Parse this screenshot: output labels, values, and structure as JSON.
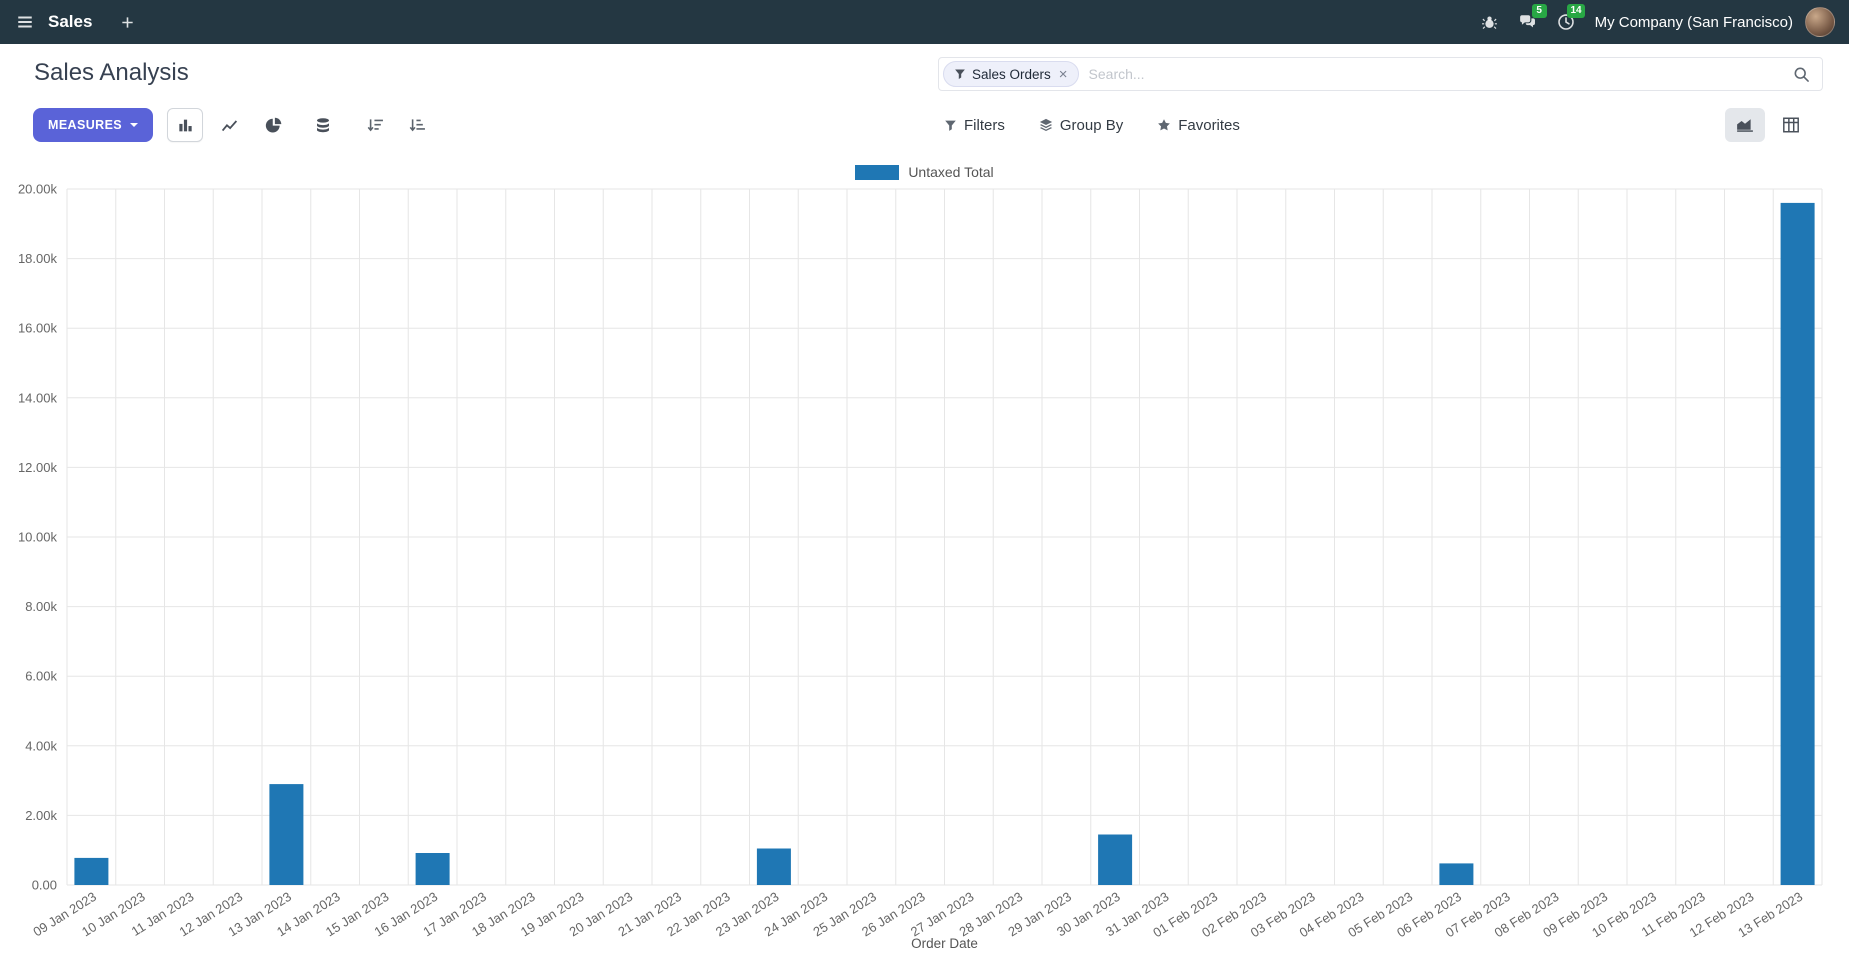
{
  "app": {
    "name": "Sales",
    "company": "My Company (San Francisco)",
    "message_badge": "5",
    "activity_badge": "14"
  },
  "control_panel": {
    "title": "Sales Analysis",
    "measures_label": "MEASURES",
    "filters_label": "Filters",
    "group_by_label": "Group By",
    "favorites_label": "Favorites",
    "search": {
      "placeholder": "Search...",
      "facet": "Sales Orders"
    }
  },
  "colors": {
    "navbar": "#243742",
    "accent": "#5a63d8",
    "badge": "#28a745",
    "bar": "#1f77b4"
  },
  "icons": {
    "hamburger-icon": "☰",
    "plus-icon": "+",
    "bug-icon": "bug shape",
    "chat-icon": "speech bubbles",
    "clock-icon": "clock",
    "search-icon": "magnifier",
    "filter-icon": "funnel",
    "group-by-icon": "layers",
    "favorites-icon": "★",
    "caret-down-icon": "▾",
    "bar-chart-icon": "vertical bars",
    "line-chart-icon": "polyline",
    "pie-chart-icon": "pie",
    "stacked-icon": "database cylinder",
    "sort-descending-icon": "↓ lines",
    "sort-ascending-icon": "↓ lines reversed",
    "area-chart-icon": "filled area",
    "pivot-table-icon": "grid table"
  },
  "chart_data": {
    "type": "bar",
    "title": "",
    "xlabel": "Order Date",
    "ylabel": "",
    "ylim": [
      0,
      20000
    ],
    "ytick_step": 2000,
    "ytick_labels": [
      "0.00",
      "2.00k",
      "4.00k",
      "6.00k",
      "8.00k",
      "10.00k",
      "12.00k",
      "14.00k",
      "16.00k",
      "18.00k",
      "20.00k"
    ],
    "grid": true,
    "legend_position": "top",
    "categories": [
      "09 Jan 2023",
      "10 Jan 2023",
      "11 Jan 2023",
      "12 Jan 2023",
      "13 Jan 2023",
      "14 Jan 2023",
      "15 Jan 2023",
      "16 Jan 2023",
      "17 Jan 2023",
      "18 Jan 2023",
      "19 Jan 2023",
      "20 Jan 2023",
      "21 Jan 2023",
      "22 Jan 2023",
      "23 Jan 2023",
      "24 Jan 2023",
      "25 Jan 2023",
      "26 Jan 2023",
      "27 Jan 2023",
      "28 Jan 2023",
      "29 Jan 2023",
      "30 Jan 2023",
      "31 Jan 2023",
      "01 Feb 2023",
      "02 Feb 2023",
      "03 Feb 2023",
      "04 Feb 2023",
      "05 Feb 2023",
      "06 Feb 2023",
      "07 Feb 2023",
      "08 Feb 2023",
      "09 Feb 2023",
      "10 Feb 2023",
      "11 Feb 2023",
      "12 Feb 2023",
      "13 Feb 2023"
    ],
    "series": [
      {
        "name": "Untaxed Total",
        "color": "#1f77b4",
        "values": [
          780,
          0,
          0,
          0,
          2900,
          0,
          0,
          920,
          0,
          0,
          0,
          0,
          0,
          0,
          1050,
          0,
          0,
          0,
          0,
          0,
          0,
          1450,
          0,
          0,
          0,
          0,
          0,
          0,
          620,
          0,
          0,
          0,
          0,
          0,
          0,
          19600
        ]
      }
    ]
  }
}
